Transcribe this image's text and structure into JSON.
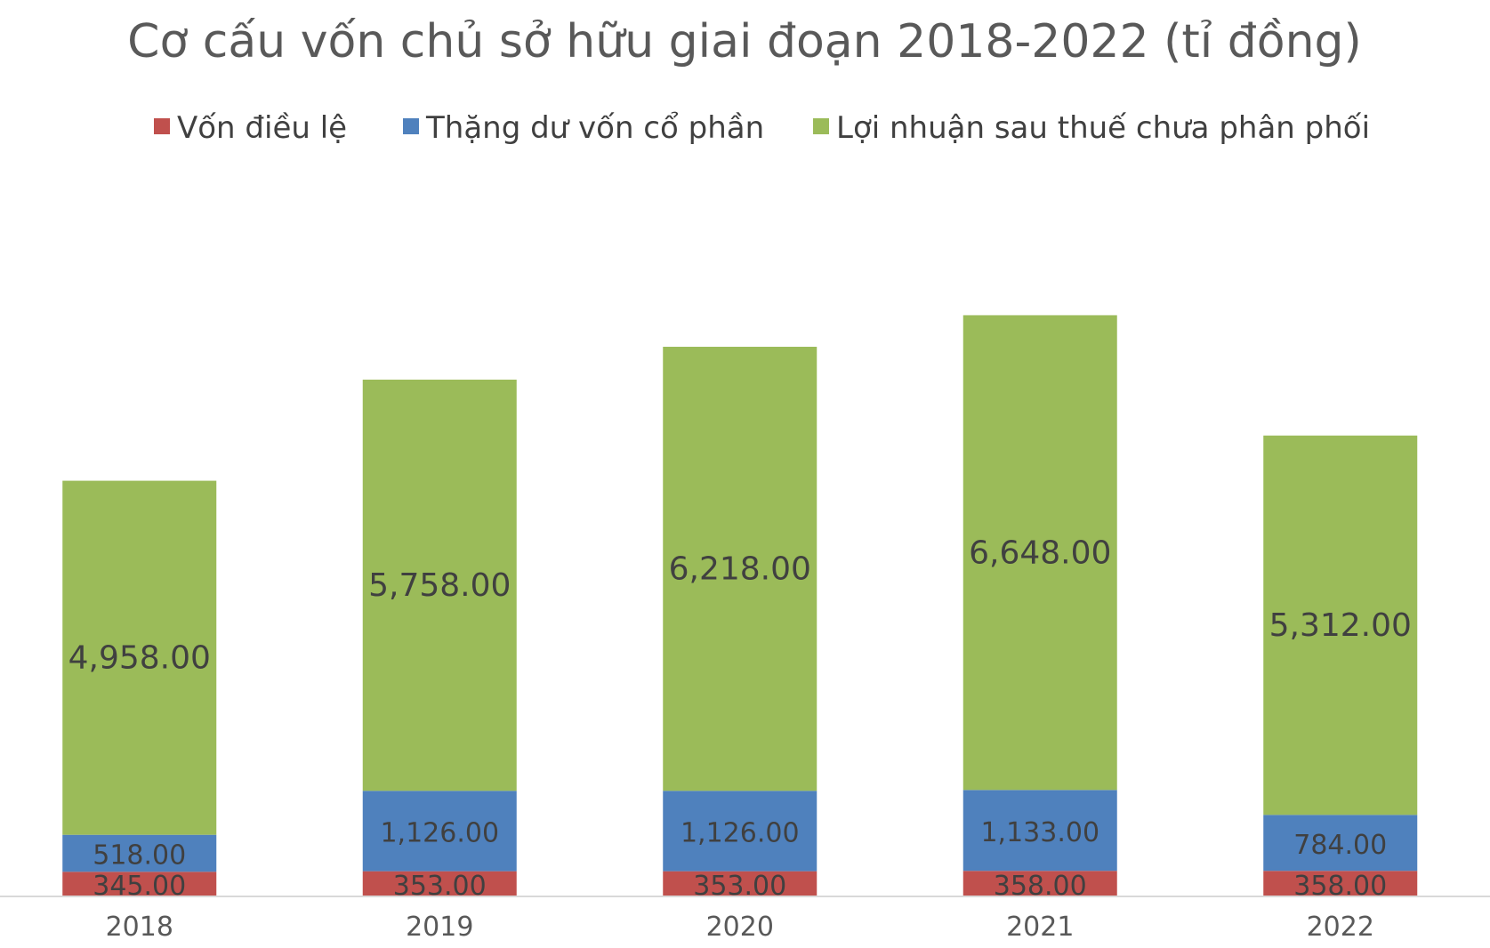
{
  "chart_data": {
    "type": "bar",
    "stacked": true,
    "title": "Cơ cấu vốn chủ sở hữu giai đoạn 2018-2022 (tỉ đồng)",
    "categories": [
      "2018",
      "2019",
      "2020",
      "2021",
      "2022"
    ],
    "series": [
      {
        "name": "Vốn điều lệ",
        "color": "#C0504D",
        "values": [
          345,
          353,
          353,
          358,
          358
        ],
        "labels": [
          "345.00",
          "353.00",
          "353.00",
          "358.00",
          "358.00"
        ]
      },
      {
        "name": "Thặng dư vốn cổ phần",
        "color": "#4F81BD",
        "values": [
          518,
          1126,
          1126,
          1133,
          784
        ],
        "labels": [
          "518.00",
          "1,126.00",
          "1,126.00",
          "1,133.00",
          "784.00"
        ]
      },
      {
        "name": "Lợi nhuận sau thuế chưa phân phối",
        "color": "#9BBB59",
        "values": [
          4958,
          5758,
          6218,
          6648,
          5312
        ],
        "labels": [
          "4,958.00",
          "5,758.00",
          "6,218.00",
          "6,648.00",
          "5,312.00"
        ]
      }
    ],
    "legend_position": "top",
    "grid": false,
    "y_axis_visible": false,
    "ylim": [
      0,
      8000
    ],
    "xlabel": "",
    "ylabel": ""
  }
}
